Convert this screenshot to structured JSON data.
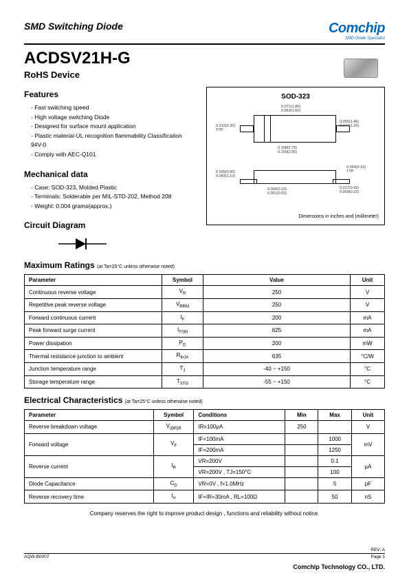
{
  "header": {
    "category": "SMD Switching Diode",
    "logo_main": "Comchip",
    "logo_sub": "SMD Diode Specialist",
    "part_number": "ACDSV21H-G",
    "rohs": "RoHS Device"
  },
  "features": {
    "title": "Features",
    "items": [
      "Fast switching speed",
      "High voltage switching Diode",
      "Designed for surface mount application",
      "Plastic material-UL recognition flammability Classification 94V-0",
      "Comply with AEC-Q101"
    ]
  },
  "mechanical": {
    "title": "Mechanical data",
    "items": [
      "Case: SOD-323, Molded Plastic",
      "Terminals: Solderable per MIL-STD-202, Method 208",
      "Weight: 0.004 grams(approx.)"
    ]
  },
  "circuit": {
    "title": "Circuit Diagram"
  },
  "package": {
    "title": "SOD-323",
    "dims": {
      "w1": "0.071(1.80)",
      "w2": "0.063(1.60)",
      "l1": "0.055(1.40)",
      "l2": "0.047(1.20)",
      "t1": "0.012(0.30)",
      "t2": "TYP",
      "p1": "0.108(2.75)",
      "p2": "0.100(2.50)",
      "h1": "0.035(0.90)",
      "h2": "0.043(1.10)",
      "h3": "0.004(0.10)",
      "h4": "TYP",
      "d1": "0.004(0.10)",
      "d2": "0.001(0.02)",
      "e1": "0.017(0.42)",
      "e2": "0.009(0.22)"
    },
    "note": "Dimensions in inches and (millimeter)"
  },
  "max_ratings": {
    "title": "Maximum Ratings",
    "note": "(at Ta=25°C unless otherwise noted)",
    "headers": {
      "param": "Parameter",
      "symbol": "Symbol",
      "value": "Value",
      "unit": "Unit"
    },
    "rows": [
      {
        "param": "Continuous reverse voltage",
        "symbol": "V",
        "sub": "R",
        "value": "250",
        "unit": "V"
      },
      {
        "param": "Repetitive peak reverse voltage",
        "symbol": "V",
        "sub": "RRM",
        "value": "250",
        "unit": "V"
      },
      {
        "param": "Forward  continuous current",
        "symbol": "I",
        "sub": "F",
        "value": "200",
        "unit": "mA"
      },
      {
        "param": "Peak forward surge current",
        "symbol": "I",
        "sub": "FSM",
        "value": "625",
        "unit": "mA"
      },
      {
        "param": "Power dissipation",
        "symbol": "P",
        "sub": "D",
        "value": "200",
        "unit": "mW"
      },
      {
        "param": "Thermal resistance junction to ambient",
        "symbol": "R",
        "sub": "thJA",
        "value": "635",
        "unit": "°C/W"
      },
      {
        "param": "Junction temperature range",
        "symbol": "T",
        "sub": "J",
        "value": "-40 ~ +150",
        "unit": "°C"
      },
      {
        "param": "Storage temperature range",
        "symbol": "T",
        "sub": "STG",
        "value": "-55 ~ +150",
        "unit": "°C"
      }
    ]
  },
  "elec": {
    "title": "Electrical Characteristics",
    "note": "(at Ta=25°C unless otherwise noted)",
    "headers": {
      "param": "Parameter",
      "symbol": "Symbol",
      "cond": "Conditions",
      "min": "Min",
      "max": "Max",
      "unit": "Unit"
    },
    "rows": [
      {
        "param": "Reverse breakdown voltage",
        "symbol": "V",
        "sub": "(BR)R",
        "cond": "IR=100µA",
        "min": "250",
        "max": "",
        "unit": "V",
        "rowspan": 1
      },
      {
        "param": "Forward voltage",
        "symbol": "V",
        "sub": "F",
        "cond": "IF=100mA",
        "min": "",
        "max": "1000",
        "unit": "mV",
        "rowspan": 2
      },
      {
        "cond": "IF=200mA",
        "min": "",
        "max": "1250"
      },
      {
        "param": "Reverse current",
        "symbol": "I",
        "sub": "R",
        "cond": "VR=200V",
        "min": "",
        "max": "0.1",
        "unit": "µA",
        "rowspan": 2
      },
      {
        "cond": "VR=200V , TJ=150°C",
        "min": "",
        "max": "100"
      },
      {
        "param": "Diode Capacitance",
        "symbol": "C",
        "sub": "D",
        "cond": "VR=0V , f=1.0MHz",
        "min": "",
        "max": "5",
        "unit": "pF",
        "rowspan": 1
      },
      {
        "param": "Reverse recovery time",
        "symbol": "t",
        "sub": "rr",
        "cond": "IF=IR=30mA , RL=100Ω",
        "min": "",
        "max": "50",
        "unit": "nS",
        "rowspan": 1
      }
    ]
  },
  "footer": {
    "note": "Company reserves the right to improve product design , functions and reliability without notice.",
    "rev": "REV: A",
    "code": "AQW-B0007",
    "company": "Comchip Technology CO., LTD.",
    "page": "Page 1"
  }
}
